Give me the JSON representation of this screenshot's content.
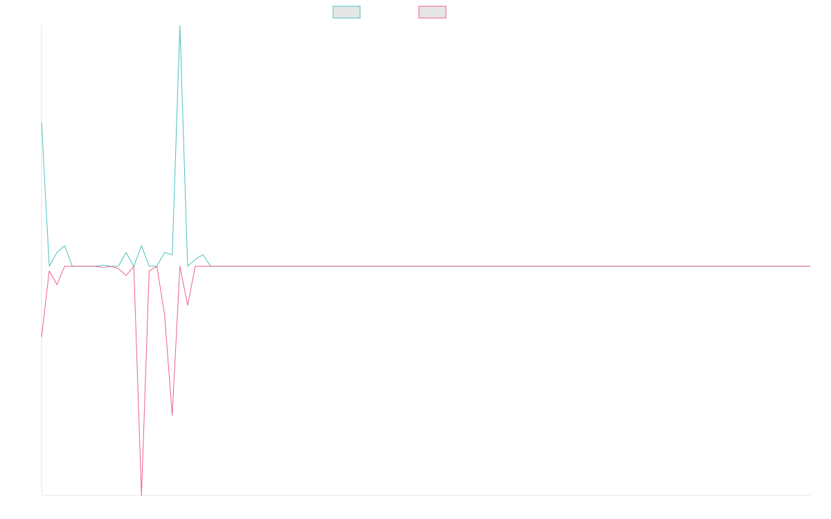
{
  "chart_data": {
    "type": "line",
    "title": "",
    "xlabel": "",
    "ylabel": "",
    "grid": false,
    "legend": "top-center",
    "x": [
      0,
      1,
      2,
      3,
      4,
      5,
      6,
      7,
      8,
      9,
      10,
      11,
      12,
      13,
      14,
      15,
      16,
      17,
      18,
      19,
      20,
      21,
      22,
      23,
      24,
      25,
      26,
      27,
      28,
      29,
      30,
      31,
      32,
      33,
      34,
      35,
      36,
      37,
      38,
      39,
      40,
      41,
      42,
      43,
      44,
      45,
      46,
      47,
      48,
      49,
      50,
      51,
      52,
      53,
      54,
      55,
      56,
      57,
      58,
      59,
      60,
      61,
      62,
      63,
      64,
      65,
      66,
      67,
      68,
      69,
      70,
      71,
      72,
      73,
      74,
      75,
      76,
      77,
      78,
      79,
      80,
      81,
      82,
      83,
      84,
      85,
      86,
      87,
      88,
      89,
      90,
      91,
      92,
      93,
      94,
      95,
      96,
      97,
      98,
      99,
      100
    ],
    "xlim": [
      0,
      100
    ],
    "ylim": [
      -1,
      1.05
    ],
    "series": [
      {
        "color": "#4bbfbf",
        "values": [
          0.63,
          0,
          0.06,
          0.09,
          0,
          0,
          0,
          0,
          0.005,
          0,
          0,
          0.06,
          0,
          0.09,
          0,
          0,
          0.06,
          0.05,
          1.05,
          0,
          0.03,
          0.05,
          0,
          0,
          0,
          0,
          0,
          0,
          0,
          0,
          0,
          0,
          0,
          0,
          0,
          0,
          0,
          0,
          0,
          0,
          0,
          0,
          0,
          0,
          0,
          0,
          0,
          0,
          0,
          0,
          0,
          0,
          0,
          0,
          0,
          0,
          0,
          0,
          0,
          0,
          0,
          0,
          0,
          0,
          0,
          0,
          0,
          0,
          0,
          0,
          0,
          0,
          0,
          0,
          0,
          0,
          0,
          0,
          0,
          0,
          0,
          0,
          0,
          0,
          0,
          0,
          0,
          0,
          0,
          0,
          0,
          0,
          0,
          0,
          0,
          0,
          0,
          0,
          0,
          0,
          0
        ]
      },
      {
        "color": "#ef5f86",
        "values": [
          -0.31,
          -0.02,
          -0.08,
          0,
          0,
          0,
          0,
          0,
          -0.005,
          0,
          -0.01,
          -0.04,
          0,
          -1,
          -0.02,
          0,
          -0.21,
          -0.65,
          0,
          -0.17,
          0,
          0,
          0,
          0,
          0,
          0,
          0,
          0,
          0,
          0,
          0,
          0,
          0,
          0,
          0,
          0,
          0,
          0,
          0,
          0,
          0,
          0,
          0,
          0,
          0,
          0,
          0,
          0,
          0,
          0,
          0,
          0,
          0,
          0,
          0,
          0,
          0,
          0,
          0,
          0,
          0,
          0,
          0,
          0,
          0,
          0,
          0,
          0,
          0,
          0,
          0,
          0,
          0,
          0,
          0,
          0,
          0,
          0,
          0,
          0,
          0,
          0,
          0,
          0,
          0,
          0,
          0,
          0,
          0,
          0,
          0,
          0,
          0,
          0,
          0,
          0,
          0,
          0,
          0,
          0,
          0
        ]
      }
    ]
  }
}
